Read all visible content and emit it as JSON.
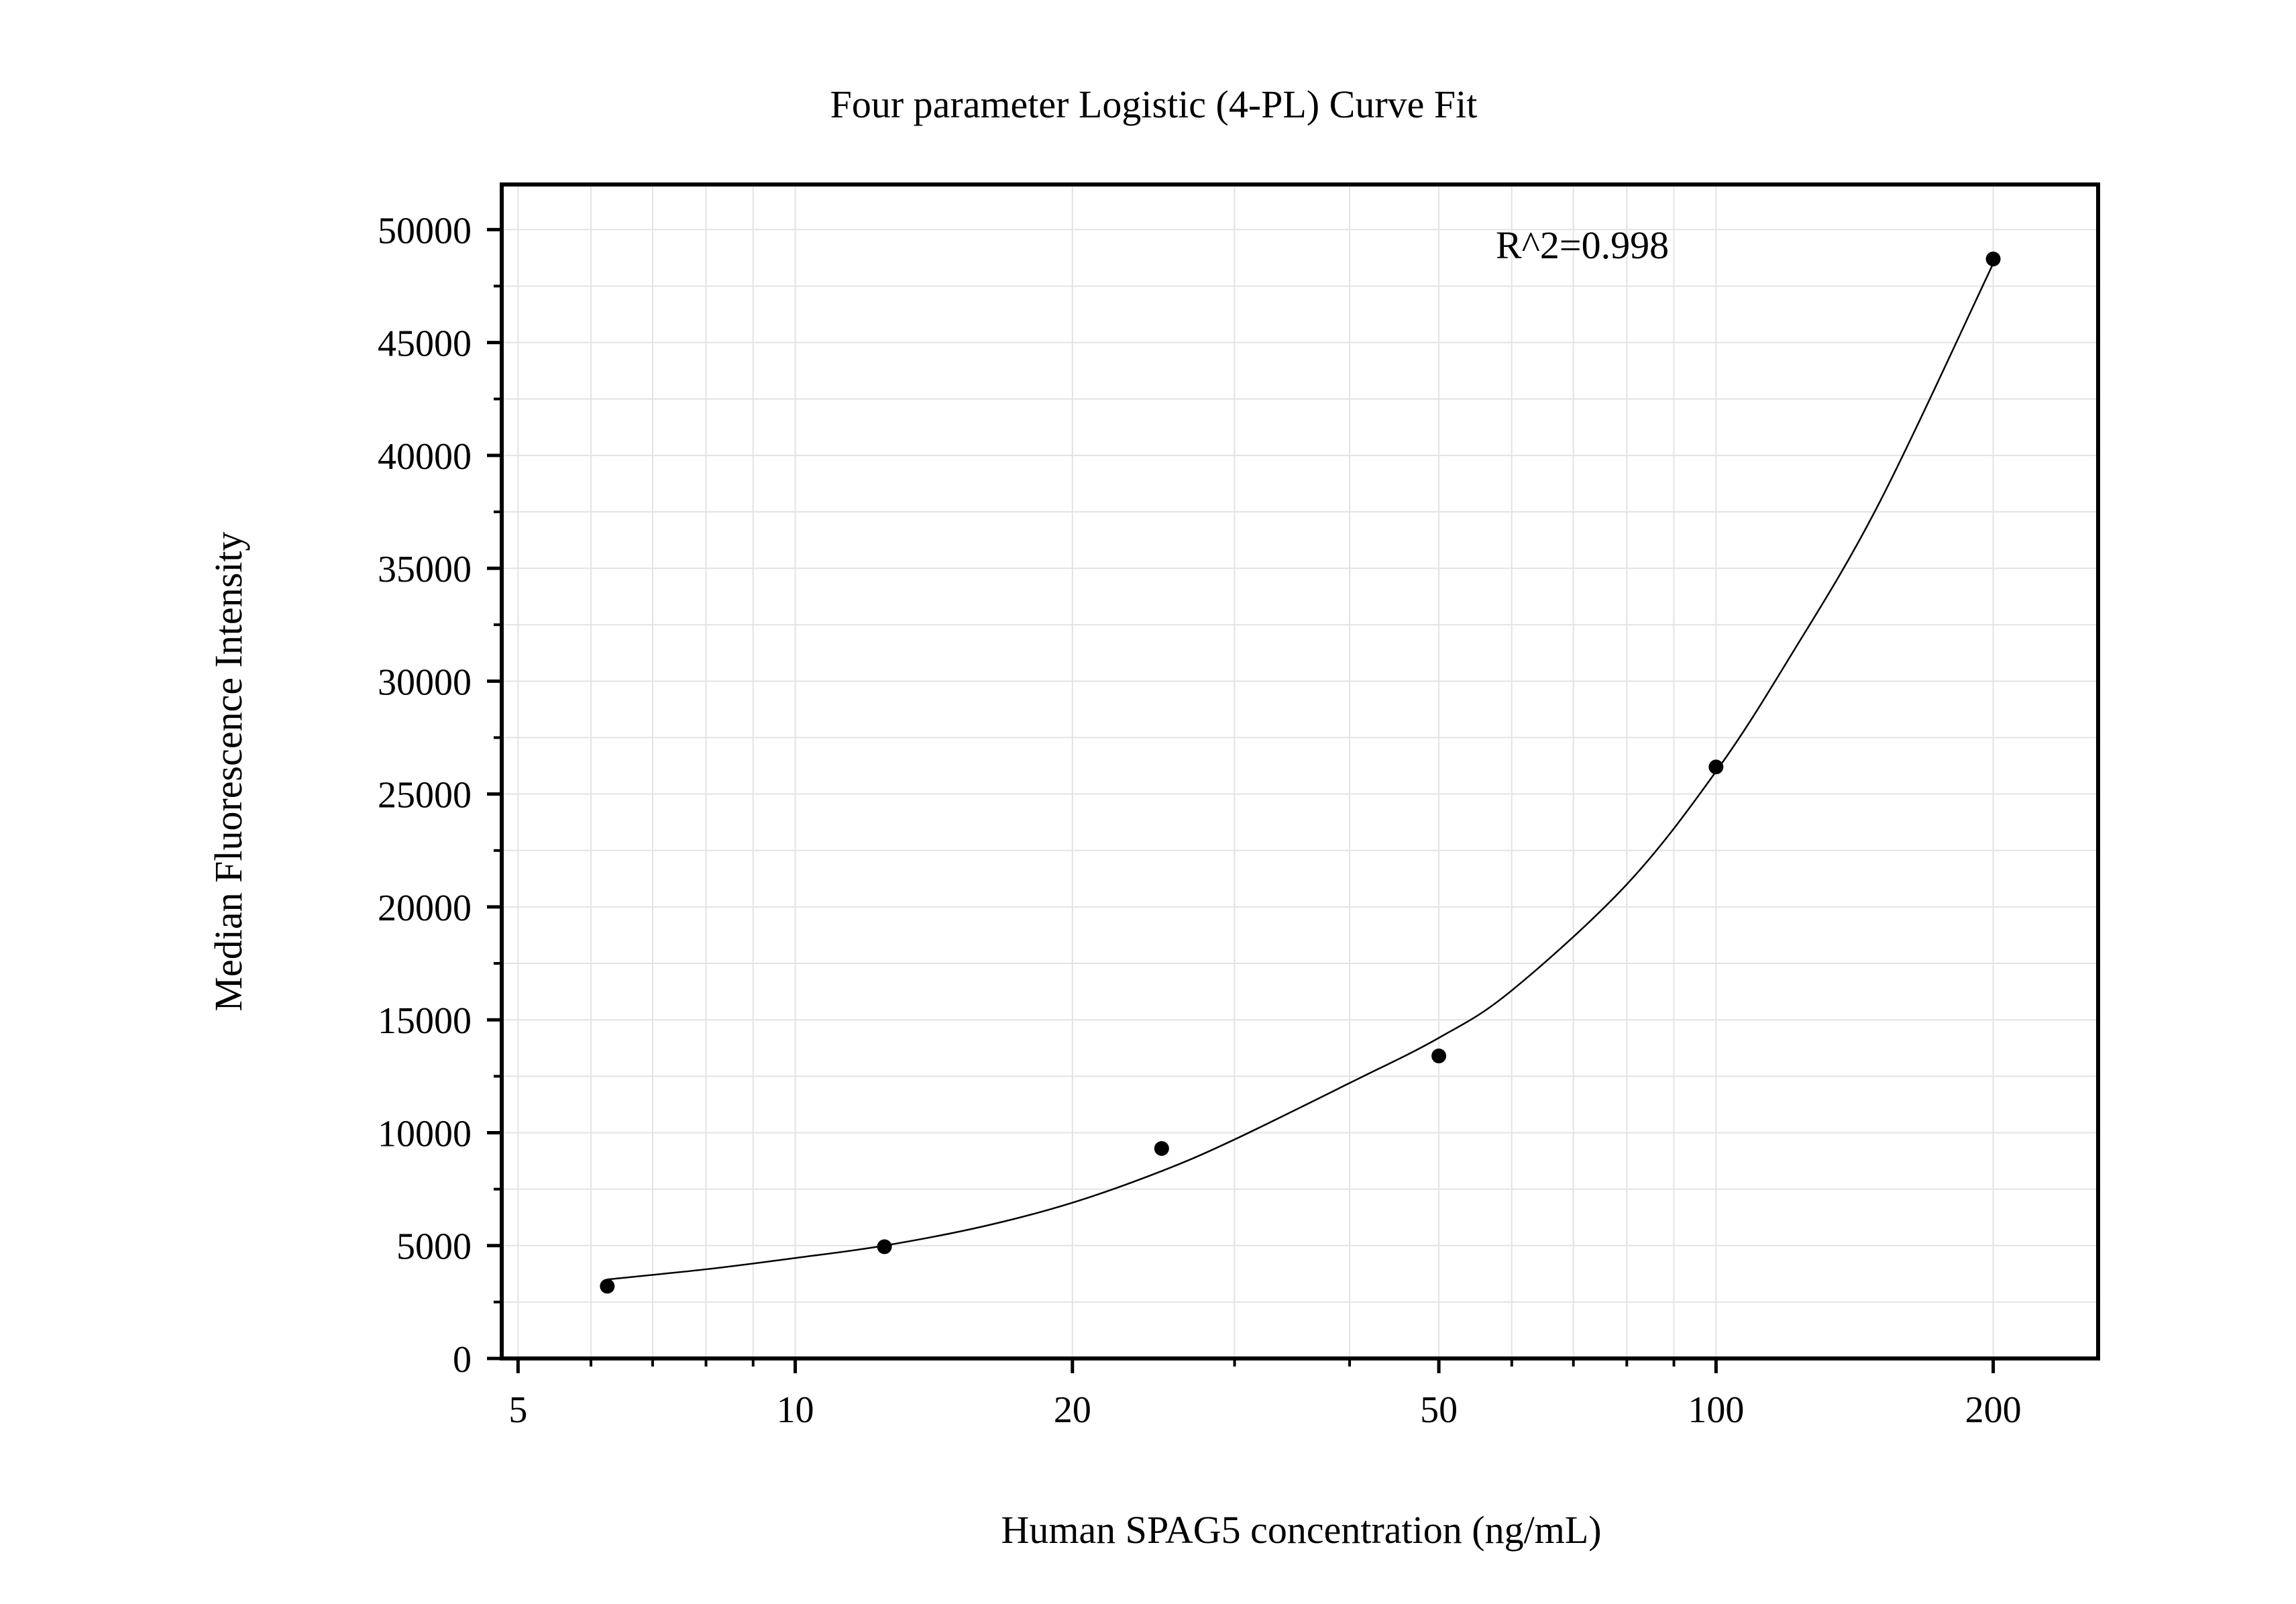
{
  "chart_data": {
    "type": "scatter",
    "title": "Four parameter Logistic (4-PL) Curve Fit",
    "xlabel": "Human SPAG5 concentration (ng/mL)",
    "ylabel": "Median Fluorescence Intensity",
    "x_scale": "log",
    "xlim": [
      4.8,
      260
    ],
    "ylim": [
      0,
      52000
    ],
    "x_ticks": [
      5,
      10,
      20,
      50,
      100,
      200
    ],
    "x_tick_labels": [
      "5",
      "10",
      "20",
      "50",
      "100",
      "200"
    ],
    "y_ticks": [
      0,
      5000,
      10000,
      15000,
      20000,
      25000,
      30000,
      35000,
      40000,
      45000,
      50000
    ],
    "y_tick_labels": [
      "0",
      "5000",
      "10000",
      "15000",
      "20000",
      "25000",
      "30000",
      "35000",
      "40000",
      "45000",
      "50000"
    ],
    "grid": true,
    "annotation": "R^2=0.998",
    "series": [
      {
        "type": "scatter",
        "x": [
          6.25,
          12.5,
          25,
          50,
          100,
          200
        ],
        "y": [
          3200,
          4950,
          9300,
          13400,
          26200,
          48700
        ]
      },
      {
        "type": "line",
        "x": [
          6.25,
          8,
          10,
          12.5,
          16,
          20,
          25,
          30,
          40,
          50,
          60,
          80,
          100,
          120,
          150,
          200
        ],
        "y": [
          3500,
          3950,
          4450,
          5000,
          5850,
          6900,
          8300,
          9700,
          12200,
          14200,
          16300,
          21000,
          26000,
          31000,
          37800,
          48500
        ]
      }
    ],
    "colors": {
      "marker": "#000000",
      "curve": "#000000",
      "grid": "#e3e3e3",
      "frame": "#000000"
    }
  }
}
